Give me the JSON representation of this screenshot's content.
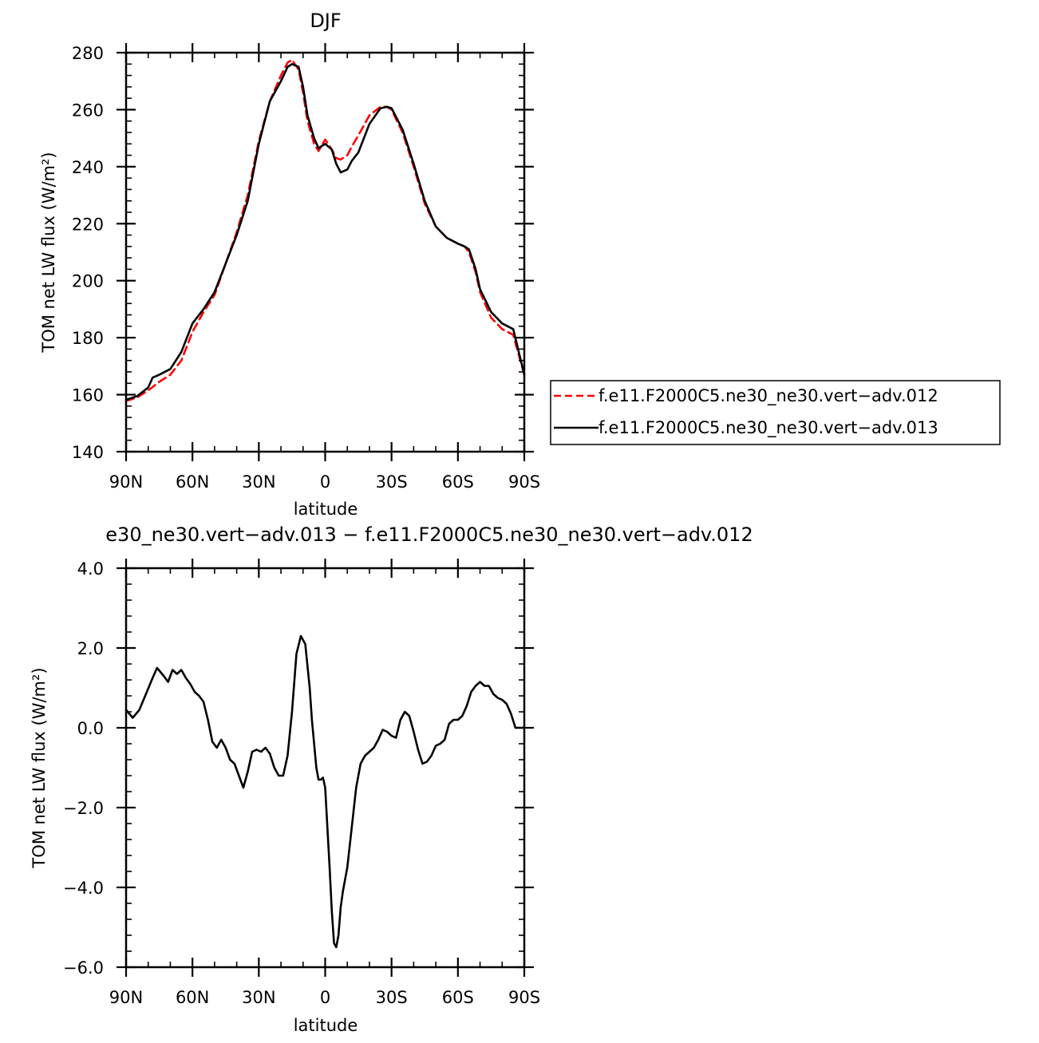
{
  "chart_data": [
    {
      "type": "line",
      "title": "DJF",
      "xlabel": "latitude",
      "ylabel": "TOM net LW flux (W/m²)",
      "xlim": [
        90,
        -90
      ],
      "ylim": [
        140,
        280
      ],
      "x_tick_values": [
        90,
        60,
        30,
        0,
        -30,
        -60,
        -90
      ],
      "x_tick_labels": [
        "90N",
        "60N",
        "30N",
        "0",
        "30S",
        "60S",
        "90S"
      ],
      "y_tick_values": [
        140,
        160,
        180,
        200,
        220,
        240,
        260,
        280
      ],
      "y_tick_labels": [
        "140",
        "160",
        "180",
        "200",
        "220",
        "240",
        "260",
        "280"
      ],
      "legend": "right",
      "series": [
        {
          "name": "f.e11.F2000C5.ne30_ne30.vert−adv.012",
          "color": "#ff0000",
          "dash": "dashed",
          "x": [
            90,
            85,
            80,
            75,
            70,
            65,
            60,
            55,
            50,
            45,
            40,
            35,
            30,
            25,
            20,
            17,
            15,
            12,
            10,
            8,
            5,
            3,
            0,
            -3,
            -5,
            -7,
            -10,
            -12,
            -15,
            -20,
            -25,
            -28,
            -30,
            -35,
            -40,
            -45,
            -50,
            -55,
            -60,
            -63,
            -65,
            -68,
            -70,
            -75,
            -80,
            -85,
            -90
          ],
          "y": [
            157.8,
            159.0,
            161.5,
            164.5,
            167,
            172,
            182,
            189,
            195,
            206,
            217,
            230,
            249,
            263,
            272,
            276.5,
            277.5,
            274,
            266,
            256,
            248,
            245.5,
            249.5,
            246,
            243,
            242.5,
            244,
            247,
            251,
            258,
            261,
            261,
            260,
            252,
            240,
            227,
            219,
            215,
            213,
            212,
            210,
            203,
            196,
            187,
            183,
            181,
            167
          ]
        },
        {
          "name": "f.e11.F2000C5.ne30_ne30.vert−adv.013",
          "color": "#000000",
          "dash": "solid",
          "x": [
            90,
            85,
            80,
            78,
            75,
            70,
            65,
            60,
            55,
            50,
            45,
            40,
            35,
            30,
            25,
            20,
            17,
            15,
            12,
            10,
            8,
            5,
            3,
            0,
            -3,
            -5,
            -7,
            -10,
            -12,
            -15,
            -20,
            -25,
            -28,
            -30,
            -35,
            -40,
            -45,
            -50,
            -55,
            -60,
            -63,
            -65,
            -68,
            -70,
            -75,
            -80,
            -85,
            -90
          ],
          "y": [
            158.2,
            159.5,
            162.5,
            166,
            167,
            169,
            175,
            185,
            190,
            196,
            206,
            216,
            228,
            248,
            263,
            270,
            275,
            276,
            275,
            268,
            258,
            250,
            246.5,
            248,
            246,
            241,
            238,
            239,
            242,
            245,
            255,
            260.5,
            261,
            260.5,
            253,
            241,
            228,
            219,
            215,
            213,
            212,
            211,
            204,
            197,
            189,
            185,
            183,
            167
          ]
        }
      ]
    },
    {
      "type": "line",
      "title": "e30_ne30.vert−adv.013 − f.e11.F2000C5.ne30_ne30.vert−adv.012",
      "xlabel": "latitude",
      "ylabel": "TOM net LW flux (W/m²)",
      "xlim": [
        90,
        -90
      ],
      "ylim": [
        -6,
        4
      ],
      "x_tick_values": [
        90,
        60,
        30,
        0,
        -30,
        -60,
        -90
      ],
      "x_tick_labels": [
        "90N",
        "60N",
        "30N",
        "0",
        "30S",
        "60S",
        "90S"
      ],
      "y_tick_values": [
        -6,
        -4,
        -2,
        0,
        2,
        4
      ],
      "y_tick_labels": [
        "−6.0",
        "−4.0",
        "−2.0",
        "0.0",
        "2.0",
        "4.0"
      ],
      "series": [
        {
          "name": "",
          "color": "#000000",
          "dash": "solid",
          "x": [
            90,
            87,
            84,
            81,
            78,
            76,
            73,
            71,
            69,
            67,
            65,
            63,
            61,
            59,
            57,
            55,
            53,
            51,
            49,
            47,
            45,
            43,
            41,
            39,
            37,
            35,
            33,
            31,
            29,
            27,
            25,
            23,
            21,
            19,
            17,
            15,
            13,
            11,
            9,
            7,
            6,
            5,
            4,
            3,
            2,
            1,
            0,
            -1,
            -2,
            -3,
            -4,
            -5,
            -6,
            -7,
            -8,
            -9,
            -10,
            -12,
            -14,
            -16,
            -18,
            -20,
            -22,
            -24,
            -26,
            -28,
            -30,
            -32,
            -34,
            -36,
            -38,
            -40,
            -42,
            -44,
            -46,
            -48,
            -50,
            -52,
            -54,
            -56,
            -58,
            -60,
            -62,
            -64,
            -66,
            -68,
            -70,
            -72,
            -74,
            -76,
            -78,
            -80,
            -82,
            -84,
            -86,
            -88,
            -90
          ],
          "y": [
            0.45,
            0.25,
            0.45,
            0.85,
            1.25,
            1.5,
            1.3,
            1.15,
            1.45,
            1.35,
            1.45,
            1.25,
            1.1,
            0.9,
            0.8,
            0.65,
            0.2,
            -0.35,
            -0.5,
            -0.3,
            -0.5,
            -0.8,
            -0.9,
            -1.2,
            -1.5,
            -1.1,
            -0.6,
            -0.55,
            -0.6,
            -0.5,
            -0.65,
            -1.0,
            -1.2,
            -1.2,
            -0.7,
            0.4,
            1.85,
            2.3,
            2.1,
            1.0,
            0.2,
            -0.4,
            -1.0,
            -1.3,
            -1.3,
            -1.25,
            -1.5,
            -2.5,
            -3.5,
            -4.6,
            -5.4,
            -5.5,
            -5.2,
            -4.5,
            -4.1,
            -3.8,
            -3.5,
            -2.5,
            -1.5,
            -0.9,
            -0.7,
            -0.6,
            -0.5,
            -0.3,
            -0.05,
            -0.1,
            -0.2,
            -0.25,
            0.2,
            0.4,
            0.3,
            -0.1,
            -0.55,
            -0.9,
            -0.85,
            -0.7,
            -0.45,
            -0.4,
            -0.3,
            0.1,
            0.2,
            0.2,
            0.3,
            0.55,
            0.9,
            1.05,
            1.15,
            1.05,
            1.05,
            0.85,
            0.75,
            0.7,
            0.6,
            0.35,
            0.0,
            0.0,
            0.0
          ]
        }
      ]
    }
  ]
}
